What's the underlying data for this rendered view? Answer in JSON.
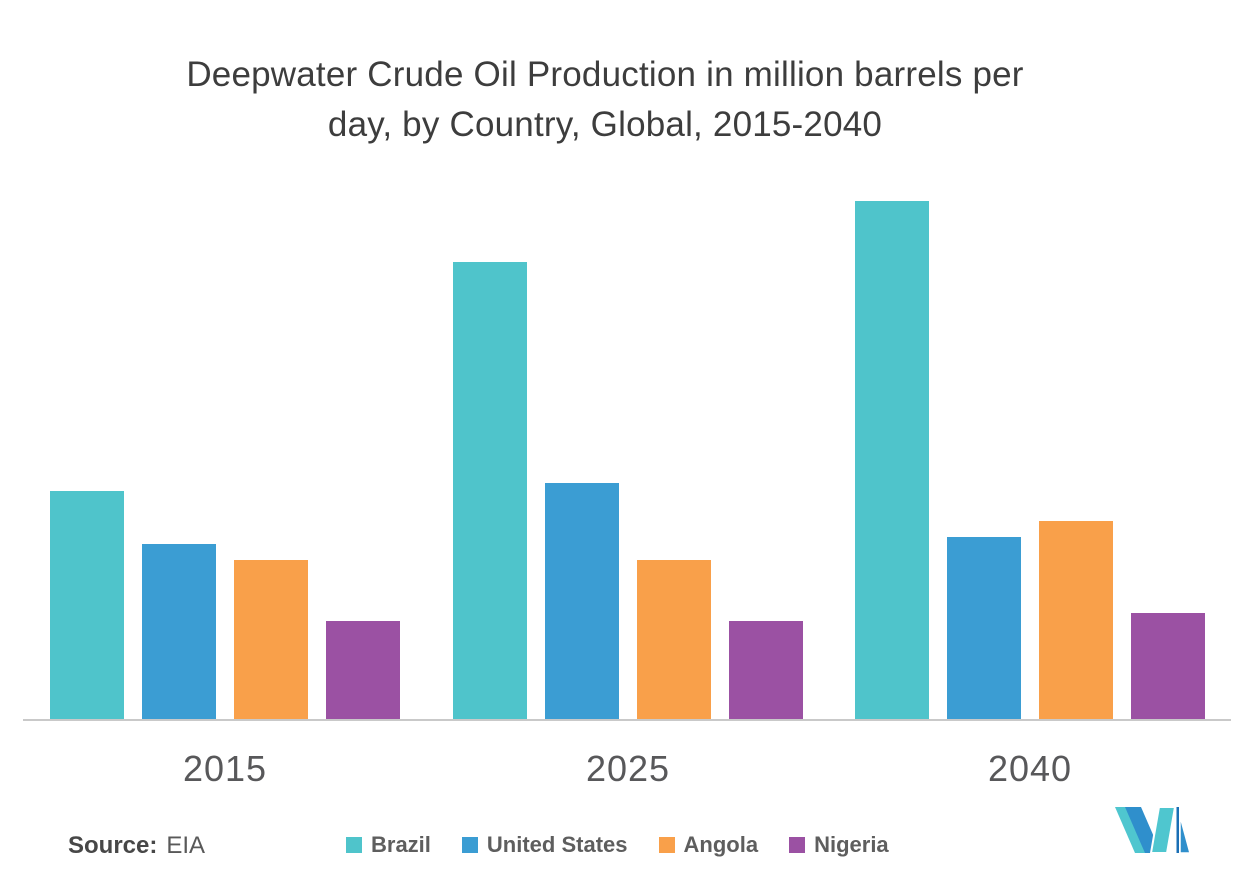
{
  "title": {
    "line1": "Deepwater Crude Oil Production in million barrels per",
    "line2": "day, by Country, Global, 2015-2040"
  },
  "source": {
    "label": "Source:",
    "value": "EIA"
  },
  "chart_data": {
    "type": "bar",
    "title": "Deepwater Crude Oil Production in million barrels per day, by Country, Global, 2015-2040",
    "categories": [
      "2015",
      "2025",
      "2040"
    ],
    "series": [
      {
        "name": "Brazil",
        "color": "#4FC4CB",
        "values": [
          1.5,
          3.0,
          3.4
        ]
      },
      {
        "name": "United States",
        "color": "#3B9DD3",
        "values": [
          1.15,
          1.55,
          1.2
        ]
      },
      {
        "name": "Angola",
        "color": "#F9A04A",
        "values": [
          1.05,
          1.05,
          1.3
        ]
      },
      {
        "name": "Nigeria",
        "color": "#9B51A3",
        "values": [
          0.65,
          0.65,
          0.7
        ]
      }
    ],
    "unit": "million barrels per day",
    "xlabel": "",
    "ylabel": "",
    "ylim": [
      0,
      3.7
    ],
    "grid": false,
    "y_axis_visible": false,
    "legend_position": "bottom"
  },
  "logo": {
    "name": "mordor-intelligence-logo",
    "teal": "#4FC6CF",
    "blue": "#2F8FCC",
    "dark_blue": "#1A6FB5"
  }
}
